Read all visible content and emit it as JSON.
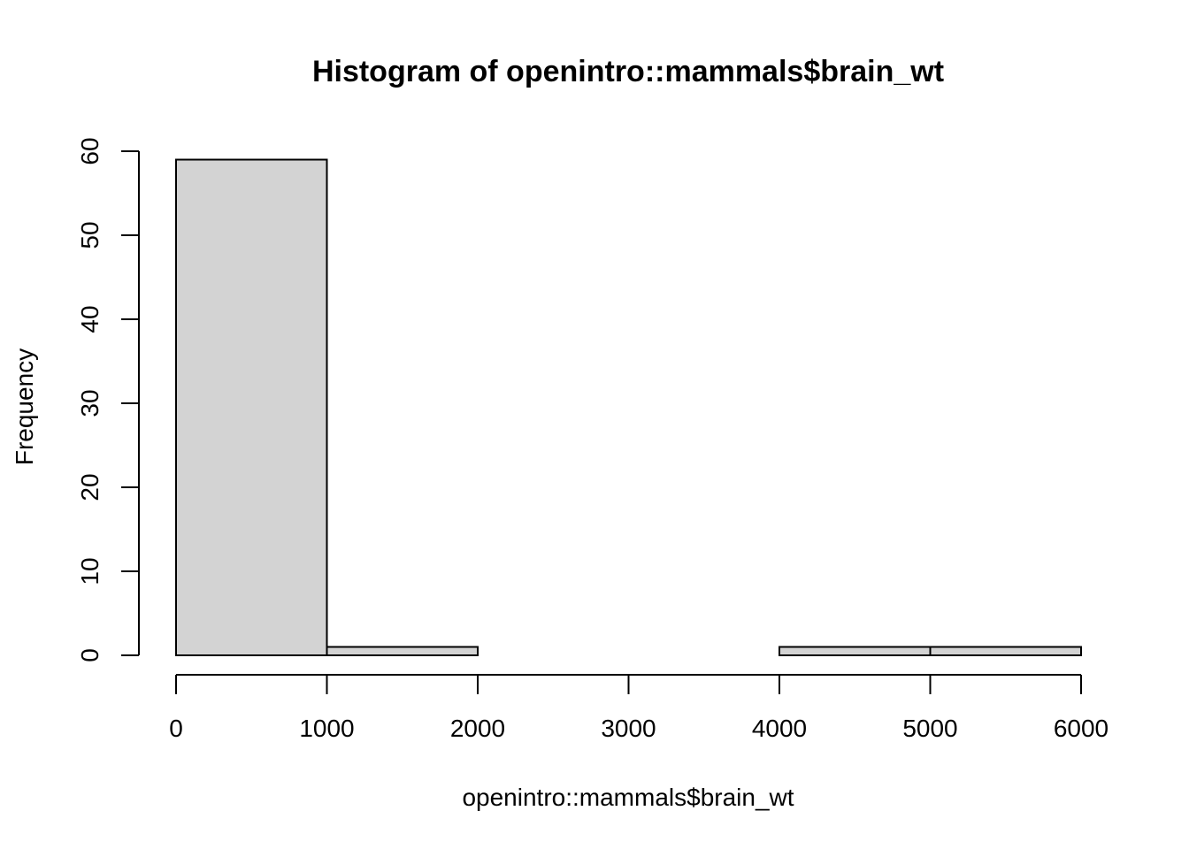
{
  "chart_data": {
    "type": "bar",
    "title": "Histogram of openintro::mammals$brain_wt",
    "xlabel": "openintro::mammals$brain_wt",
    "ylabel": "Frequency",
    "bins": [
      {
        "start": 0,
        "end": 1000,
        "count": 59
      },
      {
        "start": 1000,
        "end": 2000,
        "count": 1
      },
      {
        "start": 2000,
        "end": 3000,
        "count": 0
      },
      {
        "start": 3000,
        "end": 4000,
        "count": 0
      },
      {
        "start": 4000,
        "end": 5000,
        "count": 1
      },
      {
        "start": 5000,
        "end": 6000,
        "count": 1
      }
    ],
    "xlim": [
      0,
      6000
    ],
    "ylim": [
      0,
      60
    ],
    "x_ticks": [
      "0",
      "1000",
      "2000",
      "3000",
      "4000",
      "5000",
      "6000"
    ],
    "y_ticks": [
      "0",
      "10",
      "20",
      "30",
      "40",
      "50",
      "60"
    ],
    "bar_color": "#d3d3d3",
    "grid": false
  }
}
